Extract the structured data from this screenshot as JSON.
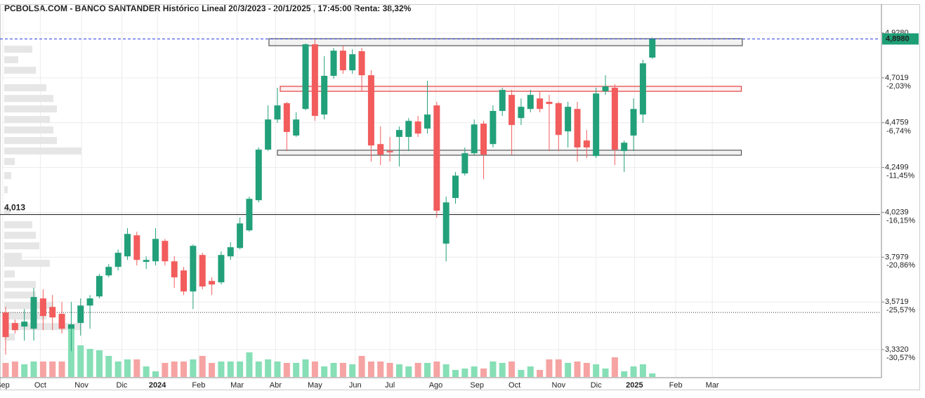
{
  "chart_data": {
    "type": "candlestick",
    "title": "PCBOLSA.COM - BANCO SANTANDER Histórico Lineal 20/3/2023 - 20/1/2025 , 17:45:00 Renta: 38,32%",
    "colors": {
      "up": "#22a07a",
      "down": "#f25c5c",
      "up_volume": "#86dfb6",
      "down_volume": "#f6a3a3"
    },
    "open": [
      3.519,
      3.466,
      3.448,
      3.437,
      3.59,
      3.547,
      3.512,
      3.437,
      3.466,
      3.554,
      3.6,
      3.706,
      3.749,
      3.802,
      3.908,
      3.774,
      3.777,
      3.88,
      3.777,
      3.731,
      3.625,
      3.809,
      3.678,
      3.671,
      3.802,
      3.844,
      3.933,
      4.085,
      4.34,
      4.492,
      4.574,
      4.411,
      4.545,
      4.871,
      4.517,
      4.712,
      4.839,
      4.74,
      4.836,
      4.715,
      4.368,
      4.333,
      4.404,
      4.404,
      4.482,
      4.446,
      4.563,
      3.866,
      4.096,
      4.22,
      4.322,
      4.471,
      4.368,
      4.535,
      4.616,
      4.499,
      4.545,
      4.598,
      4.581,
      4.574,
      4.432,
      4.545,
      4.386,
      4.308,
      4.634,
      4.652,
      4.333,
      4.411,
      4.517,
      4.804
    ],
    "high": [
      3.547,
      3.483,
      3.536,
      3.643,
      3.636,
      3.607,
      3.572,
      3.572,
      3.59,
      3.607,
      3.713,
      3.763,
      3.837,
      3.944,
      3.926,
      3.802,
      3.944,
      3.89,
      3.802,
      3.749,
      3.862,
      3.82,
      3.696,
      3.827,
      3.873,
      3.997,
      4.103,
      4.351,
      4.563,
      4.652,
      4.581,
      4.528,
      4.875,
      4.899,
      4.811,
      4.853,
      4.864,
      4.846,
      4.853,
      4.74,
      4.457,
      4.404,
      4.457,
      4.499,
      4.51,
      4.687,
      4.581,
      4.103,
      4.227,
      4.351,
      4.492,
      4.485,
      4.563,
      4.652,
      4.641,
      4.598,
      4.641,
      4.634,
      4.616,
      4.581,
      4.581,
      4.581,
      4.439,
      4.652,
      4.715,
      4.669,
      4.386,
      4.598,
      4.793,
      4.905
    ],
    "low": [
      3.306,
      3.413,
      3.377,
      3.377,
      3.43,
      3.43,
      3.413,
      3.324,
      3.402,
      3.437,
      3.59,
      3.696,
      3.731,
      3.784,
      3.756,
      3.738,
      3.756,
      3.756,
      3.643,
      3.607,
      3.536,
      3.636,
      3.607,
      3.66,
      3.784,
      3.837,
      3.926,
      4.074,
      4.333,
      4.475,
      4.333,
      4.404,
      4.538,
      4.485,
      4.492,
      4.698,
      4.722,
      4.722,
      4.634,
      4.28,
      4.262,
      4.28,
      4.255,
      4.333,
      4.404,
      4.421,
      3.997,
      3.777,
      4.067,
      4.209,
      4.308,
      4.191,
      4.351,
      4.51,
      4.315,
      4.464,
      4.528,
      4.528,
      4.333,
      4.333,
      4.351,
      4.28,
      4.298,
      4.298,
      4.616,
      4.262,
      4.227,
      4.333,
      4.475,
      4.797
    ],
    "close": [
      3.395,
      3.43,
      3.473,
      3.597,
      3.501,
      3.494,
      3.437,
      3.459,
      3.554,
      3.59,
      3.703,
      3.749,
      3.82,
      3.915,
      3.784,
      3.784,
      3.89,
      3.777,
      3.696,
      3.625,
      3.855,
      3.65,
      3.66,
      3.809,
      3.848,
      3.968,
      4.092,
      4.34,
      4.492,
      4.563,
      4.429,
      4.492,
      4.871,
      4.51,
      4.712,
      4.839,
      4.74,
      4.821,
      4.715,
      4.361,
      4.315,
      4.326,
      4.439,
      4.485,
      4.421,
      4.517,
      4.032,
      4.074,
      4.209,
      4.322,
      4.467,
      4.315,
      4.535,
      4.641,
      4.464,
      4.556,
      4.616,
      4.545,
      4.57,
      4.414,
      4.556,
      4.351,
      4.351,
      4.623,
      4.659,
      4.34,
      4.375,
      4.545,
      4.775,
      4.898
    ],
    "volume": [
      20,
      22,
      18,
      22,
      22,
      22,
      22,
      75,
      45,
      40,
      38,
      30,
      22,
      25,
      25,
      15,
      8,
      20,
      22,
      22,
      25,
      30,
      20,
      22,
      22,
      22,
      35,
      22,
      25,
      22,
      20,
      20,
      25,
      22,
      15,
      20,
      20,
      18,
      30,
      22,
      22,
      20,
      18,
      15,
      20,
      20,
      22,
      18,
      10,
      12,
      15,
      12,
      22,
      20,
      22,
      10,
      15,
      10,
      25,
      25,
      20,
      22,
      20,
      18,
      12,
      28,
      8,
      15,
      18,
      5
    ],
    "volume_lim": [
      0,
      100
    ],
    "xlim": [
      -0.6,
      93.3
    ],
    "xticks": [
      {
        "value": -0.3,
        "label": "Sep"
      },
      {
        "value": 3.7,
        "label": "Oct"
      },
      {
        "value": 8.1,
        "label": "Nov"
      },
      {
        "value": 12.4,
        "label": "Dic"
      },
      {
        "value": 16.2,
        "label": "2024"
      },
      {
        "value": 20.6,
        "label": "Feb"
      },
      {
        "value": 24.7,
        "label": "Mar"
      },
      {
        "value": 28.8,
        "label": "Abr"
      },
      {
        "value": 33.0,
        "label": "May"
      },
      {
        "value": 37.3,
        "label": "Jun"
      },
      {
        "value": 41.0,
        "label": "Jul"
      },
      {
        "value": 45.9,
        "label": "Ago"
      },
      {
        "value": 50.3,
        "label": "Sep"
      },
      {
        "value": 54.3,
        "label": "Oct"
      },
      {
        "value": 59.0,
        "label": "Nov"
      },
      {
        "value": 63.0,
        "label": "Dic"
      },
      {
        "value": 67.1,
        "label": "2025"
      },
      {
        "value": 71.5,
        "label": "Feb"
      },
      {
        "value": 75.4,
        "label": "Mar"
      }
    ],
    "ylim": [
      3.194,
      5.066
    ],
    "yticks": [
      {
        "value": 4.928,
        "label": "4,9280"
      },
      {
        "value": 4.7019,
        "label": "4,7019"
      },
      {
        "value": 4.4759,
        "label": "4,4759"
      },
      {
        "value": 4.2499,
        "label": "4,2499"
      },
      {
        "value": 4.0239,
        "label": "4,0239"
      },
      {
        "value": 3.7979,
        "label": "3,7979"
      },
      {
        "value": 3.5719,
        "label": "3,5719"
      },
      {
        "value": 3.332,
        "label": "3,3320"
      }
    ],
    "y2lim": [
      -32.56,
      6.45
    ],
    "y2ticks": [
      {
        "value": -2.03,
        "label": "-2,03%"
      },
      {
        "value": -6.74,
        "label": "-6,74%"
      },
      {
        "value": -11.45,
        "label": "-11,45%"
      },
      {
        "value": -16.15,
        "label": "-16,15%"
      },
      {
        "value": -20.86,
        "label": "-20,86%"
      },
      {
        "value": -25.57,
        "label": "-25,57%"
      },
      {
        "value": -30.57,
        "label": "-30,57%"
      }
    ],
    "grid": true,
    "last_price": {
      "value": 4.898,
      "label": "4,8980",
      "color": "#1e9e75"
    },
    "reference_line": {
      "value": 4.013,
      "label": "4,013"
    },
    "dotted_line": 3.519,
    "zones": [
      {
        "from": 28.1,
        "to": 78.6,
        "low": 4.864,
        "high": 4.899,
        "color": "#555555"
      },
      {
        "from": 29.3,
        "to": 78.5,
        "low": 4.634,
        "high": 4.659,
        "color": "#e04040"
      },
      {
        "from": 29.0,
        "to": 78.5,
        "low": 4.312,
        "high": 4.337,
        "color": "#555555"
      }
    ],
    "profile": {
      "prices": [
        4.846,
        4.793,
        4.74,
        4.652,
        4.598,
        4.545,
        4.492,
        4.439,
        4.386,
        4.333,
        4.28,
        4.209,
        4.138,
        4.032,
        3.961,
        3.908,
        3.855,
        3.802,
        3.767,
        3.713,
        3.66,
        3.607,
        3.554,
        3.501,
        3.448,
        3.395
      ],
      "values": [
        40,
        20,
        45,
        60,
        70,
        75,
        65,
        70,
        75,
        110,
        15,
        10,
        5,
        8,
        40,
        45,
        50,
        25,
        65,
        15,
        45,
        45,
        70,
        60,
        110,
        15
      ]
    }
  }
}
